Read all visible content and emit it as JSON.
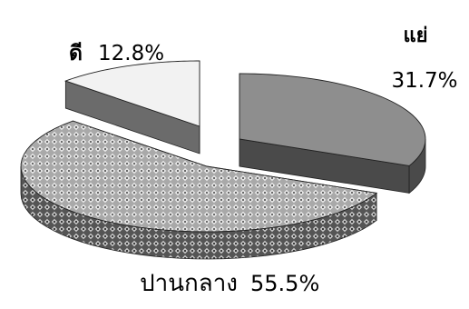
{
  "chart_data": {
    "type": "pie",
    "title": "",
    "style": "3d-exploded",
    "slices": [
      {
        "label": "แย่",
        "value": 31.7,
        "value_text": "31.7%",
        "color": "#8e8e8e",
        "side_color": "#4a4a4a",
        "pattern": "solid"
      },
      {
        "label": "ปานกลาง",
        "value": 55.5,
        "value_text": "55.5%",
        "color": "#9a9a9a",
        "side_color": "#5a5a5a",
        "pattern": "dotted-diamond"
      },
      {
        "label": "ดี",
        "value": 12.8,
        "value_text": "12.8%",
        "color": "#f2f2f2",
        "side_color": "#6b6b6b",
        "pattern": "solid"
      }
    ]
  }
}
